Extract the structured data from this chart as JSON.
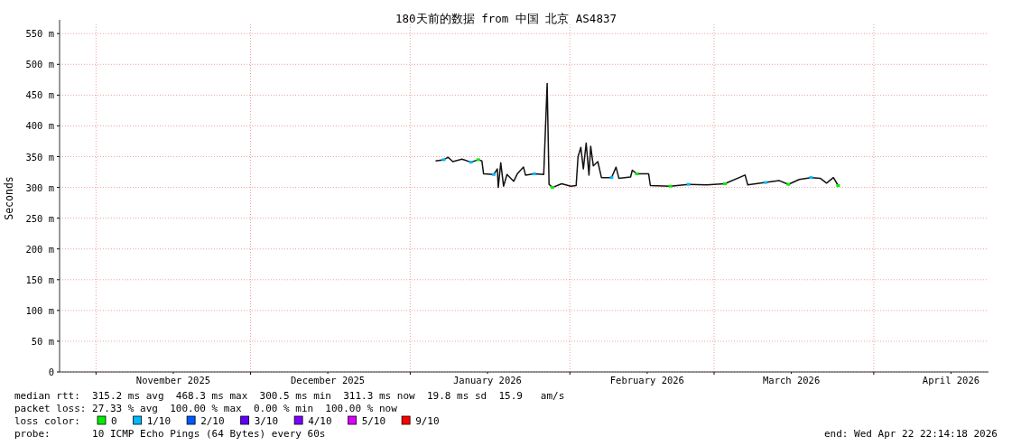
{
  "chart_data": {
    "type": "line",
    "title": "180天前的数据 from 中国 北京 AS4837",
    "ylabel": "Seconds",
    "xlim": [
      "2025-10-24T22:14",
      "2026-04-22T22:14"
    ],
    "xticks": [
      {
        "value": "2025-11-01",
        "label": null
      },
      {
        "value": "2025-12-01",
        "label": null
      },
      {
        "value": "2026-01-01",
        "label": null
      },
      {
        "value": "2026-02-01",
        "label": null
      },
      {
        "value": "2026-03-01",
        "label": null
      },
      {
        "value": "2026-04-01",
        "label": null
      },
      {
        "value": "2025-11-16",
        "label": "November 2025"
      },
      {
        "value": "2025-12-16",
        "label": "December 2025"
      },
      {
        "value": "2026-01-16",
        "label": "January 2026"
      },
      {
        "value": "2026-02-16",
        "label": "February 2026"
      },
      {
        "value": "2026-03-16",
        "label": "March 2026"
      },
      {
        "value": "2026-04-16",
        "label": "April 2026"
      }
    ],
    "ylim": [
      0,
      565
    ],
    "yticks": [
      0,
      {
        "value": 50,
        "label": "50 m"
      },
      {
        "value": 100,
        "label": "100 m"
      },
      {
        "value": 150,
        "label": "150 m"
      },
      {
        "value": 200,
        "label": "200 m"
      },
      {
        "value": 250,
        "label": "250 m"
      },
      {
        "value": 300,
        "label": "300 m"
      },
      {
        "value": 350,
        "label": "350 m"
      },
      {
        "value": 400,
        "label": "400 m"
      },
      {
        "value": 450,
        "label": "450 m"
      },
      {
        "value": 500,
        "label": "500 m"
      },
      {
        "value": 550,
        "label": "550 m"
      }
    ],
    "grid": true,
    "legend": "bottom",
    "legend_title": "loss color:",
    "series": [
      {
        "color": "#111111",
        "x": [
          "2026-01-05T22:00",
          "2026-01-07T12:00",
          "2026-01-08T09:00",
          "2026-01-09T06:00",
          "2026-01-11T01:00",
          "2026-01-12T19:00",
          "2026-01-14T05:00",
          "2026-01-14T22:00",
          "2026-01-15T06:00",
          "2026-01-17T05:00",
          "2026-01-17T22:00",
          "2026-01-18T02:00",
          "2026-01-18T14:00",
          "2026-01-19T03:00",
          "2026-01-19T19:00",
          "2026-01-21T02:00",
          "2026-01-21T19:00",
          "2026-01-23T00:00",
          "2026-01-23T09:00",
          "2026-01-25T02:00",
          "2026-01-26T22:00",
          "2026-01-27T14:00",
          "2026-01-27T23:00",
          "2026-01-28T15:00",
          "2026-01-30T10:00",
          "2026-02-01T04:00",
          "2026-02-02T05:00",
          "2026-02-02T14:00",
          "2026-02-03T03:00",
          "2026-02-03T15:00",
          "2026-02-04T04:00",
          "2026-02-04T17:00",
          "2026-02-05T01:00",
          "2026-02-05T13:00",
          "2026-02-06T10:00",
          "2026-02-07T03:00",
          "2026-02-09T02:00",
          "2026-02-09T23:00",
          "2026-02-10T12:00",
          "2026-02-12T19:00",
          "2026-02-13T03:00",
          "2026-02-14T00:00",
          "2026-02-16T07:00",
          "2026-02-16T15:00",
          "2026-02-20T12:00",
          "2026-02-24T01:00",
          "2026-02-27T14:00",
          "2026-03-03T02:00",
          "2026-03-07T00:00",
          "2026-03-07T13:00",
          "2026-03-11T00:00",
          "2026-03-13T16:00",
          "2026-03-15T10:00",
          "2026-03-17T13:00",
          "2026-03-19T20:00",
          "2026-03-21T14:00",
          "2026-03-22T20:00",
          "2026-03-24T04:00",
          "2026-03-25T02:00"
        ],
        "values": [
          343,
          345,
          349,
          342,
          346,
          341,
          345,
          343,
          322,
          321,
          330,
          300,
          340,
          302,
          321,
          310,
          322,
          333,
          320,
          322,
          321,
          469,
          305,
          300,
          306,
          302,
          303,
          350,
          365,
          330,
          372,
          320,
          367,
          335,
          342,
          316,
          316,
          333,
          315,
          317,
          328,
          322,
          322,
          303,
          302,
          305,
          304,
          306,
          320,
          304,
          308,
          311,
          305,
          313,
          316,
          315,
          307,
          316,
          303
        ]
      },
      {
        "type": "scatter",
        "name": "0",
        "color": "#00ee00",
        "x": [
          "2026-01-14T05:00",
          "2026-01-28T15:00",
          "2026-02-14T00:00",
          "2026-02-20T12:00",
          "2026-03-03T02:00",
          "2026-03-15T10:00",
          "2026-03-25T02:00"
        ],
        "values": [
          345,
          300,
          322,
          302,
          306,
          305,
          303
        ]
      },
      {
        "type": "scatter",
        "name": "1/10",
        "color": "#00b8ff",
        "x": [
          "2026-01-07T12:00",
          "2026-01-12T19:00",
          "2026-01-17T05:00",
          "2026-01-25T02:00",
          "2026-02-09T02:00",
          "2026-02-24T01:00",
          "2026-03-11T00:00",
          "2026-03-19T20:00"
        ],
        "values": [
          345,
          341,
          321,
          322,
          316,
          305,
          308,
          316
        ]
      },
      {
        "type": "scatter",
        "name": "2/10",
        "color": "#0059ff"
      },
      {
        "type": "scatter",
        "name": "3/10",
        "color": "#5e00ff"
      },
      {
        "type": "scatter",
        "name": "4/10",
        "color": "#7e00ff"
      },
      {
        "type": "scatter",
        "name": "5/10",
        "color": "#dd00ff"
      },
      {
        "type": "scatter",
        "name": "9/10",
        "color": "#ff0000"
      }
    ],
    "annotations": [
      "median rtt:  315.2 ms avg  468.3 ms max  300.5 ms min  311.3 ms now  19.8 ms sd  15.9   am/s",
      "packet loss: 27.33 % avg  100.00 % max  0.00 % min  100.00 % now",
      "probe:       10 ICMP Echo Pings (64 Bytes) every 60s",
      "end: Wed Apr 22 22:14:18 2026"
    ]
  }
}
